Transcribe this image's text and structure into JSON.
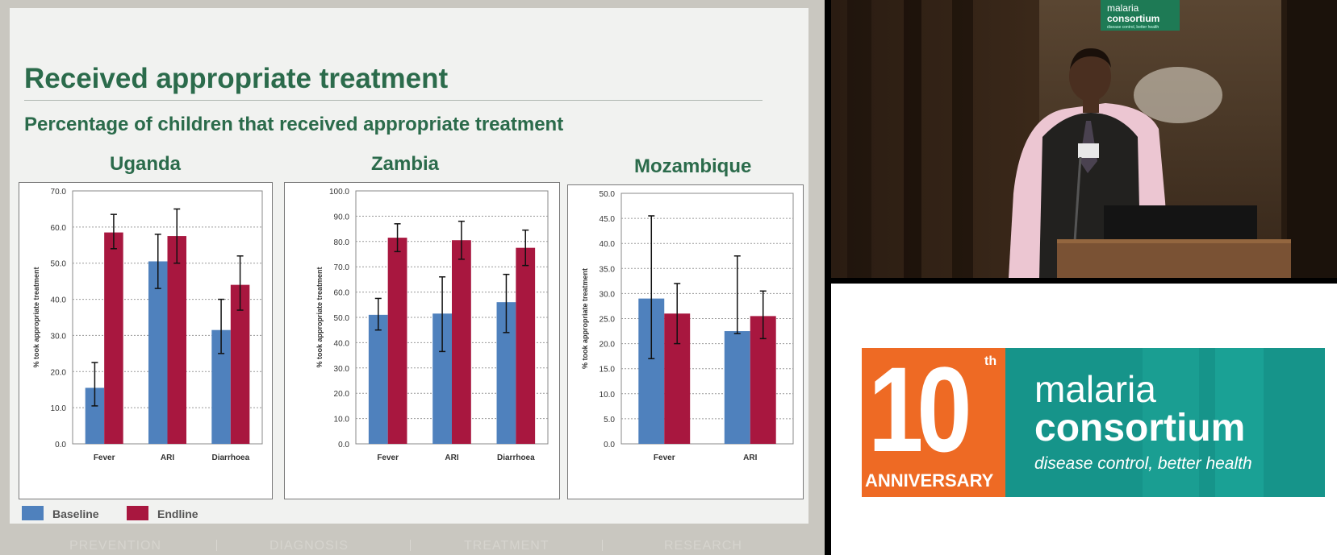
{
  "slide": {
    "title": "Received appropriate treatment",
    "subtitle": "Percentage of children that received appropriate treatment",
    "legend": [
      {
        "label": "Baseline",
        "color": "#4f81bd"
      },
      {
        "label": "Endline",
        "color": "#a8173f"
      }
    ],
    "footer_nav": [
      "PREVENTION",
      "DIAGNOSIS",
      "TREATMENT",
      "RESEARCH"
    ]
  },
  "sponsor": {
    "anniversary_number": "10",
    "anniversary_suffix": "th",
    "anniversary_label": "ANNIVERSARY",
    "brand_line1": "malaria",
    "brand_line2": "consortium",
    "tagline": "disease control, better health",
    "banner_line1": "malaria",
    "banner_line2": "consortium",
    "banner_tagline": "disease control, better health",
    "colors": {
      "orange": "#ee6a24",
      "teal": "#16948a"
    }
  },
  "chart_data": [
    {
      "type": "bar",
      "title": "Uganda",
      "ylabel": "% took appropriate treatment",
      "categories": [
        "Fever",
        "ARI",
        "Diarrhoea"
      ],
      "ylim": [
        0,
        70
      ],
      "yticks": [
        "0.0",
        "10.0",
        "20.0",
        "30.0",
        "40.0",
        "50.0",
        "60.0",
        "70.0"
      ],
      "series": [
        {
          "name": "Baseline",
          "color": "#4f81bd",
          "values": [
            15.5,
            50.5,
            31.5
          ],
          "err_low": [
            10.5,
            43,
            25
          ],
          "err_high": [
            22.5,
            58,
            40
          ]
        },
        {
          "name": "Endline",
          "color": "#a8173f",
          "values": [
            58.5,
            57.5,
            44
          ],
          "err_low": [
            54,
            50,
            37
          ],
          "err_high": [
            63.5,
            65,
            52
          ]
        }
      ]
    },
    {
      "type": "bar",
      "title": "Zambia",
      "ylabel": "% took appropriate treatment",
      "categories": [
        "Fever",
        "ARI",
        "Diarrhoea"
      ],
      "ylim": [
        0,
        100
      ],
      "yticks": [
        "0.0",
        "10.0",
        "20.0",
        "30.0",
        "40.0",
        "50.0",
        "60.0",
        "70.0",
        "80.0",
        "90.0",
        "100.0"
      ],
      "series": [
        {
          "name": "Baseline",
          "color": "#4f81bd",
          "values": [
            51,
            51.5,
            56
          ],
          "err_low": [
            45,
            36.5,
            44
          ],
          "err_high": [
            57.5,
            66,
            67
          ]
        },
        {
          "name": "Endline",
          "color": "#a8173f",
          "values": [
            81.5,
            80.5,
            77.5
          ],
          "err_low": [
            76,
            73,
            70.5
          ],
          "err_high": [
            87,
            88,
            84.5
          ]
        }
      ]
    },
    {
      "type": "bar",
      "title": "Mozambique",
      "ylabel": "% took appropriate treatment",
      "categories": [
        "Fever",
        "ARI"
      ],
      "ylim": [
        0,
        50
      ],
      "yticks": [
        "0.0",
        "5.0",
        "10.0",
        "15.0",
        "20.0",
        "25.0",
        "30.0",
        "35.0",
        "40.0",
        "45.0",
        "50.0"
      ],
      "series": [
        {
          "name": "Baseline",
          "color": "#4f81bd",
          "values": [
            29,
            22.5
          ],
          "err_low": [
            17,
            22
          ],
          "err_high": [
            45.5,
            37.5
          ]
        },
        {
          "name": "Endline",
          "color": "#a8173f",
          "values": [
            26,
            25.5
          ],
          "err_low": [
            20,
            21
          ],
          "err_high": [
            32,
            30.5
          ]
        }
      ]
    }
  ]
}
